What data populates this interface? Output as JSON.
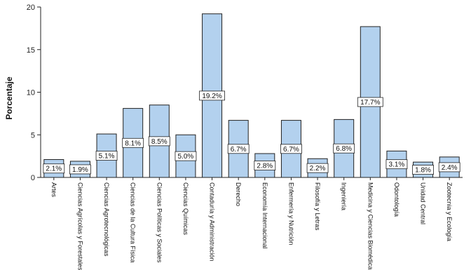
{
  "chart_data": {
    "type": "bar",
    "title": "",
    "xlabel": "",
    "ylabel": "Porcentaje",
    "ylim": [
      0,
      20
    ],
    "yticks": [
      0,
      5,
      10,
      15,
      20
    ],
    "grid": false,
    "categories": [
      "Artes",
      "Ciencias Agrícolas y Forestales",
      "Ciencias Agrotecnológicas",
      "Ciencias de la Cultura Física",
      "Ciencias Políticas y Sociales",
      "Ciencias Químicas",
      "Contaduría y Administración",
      "Derecho",
      "Economía Internacional",
      "Enfermería y Nutrición",
      "Filosofía y Letras",
      "Ingeniería",
      "Medicina y Ciencias Biomédicas",
      "Odontología",
      "Unidad Central",
      "Zootecnia y Ecología"
    ],
    "values": [
      2.1,
      1.9,
      5.1,
      8.1,
      8.5,
      5.0,
      19.2,
      6.7,
      2.8,
      6.7,
      2.2,
      6.8,
      17.7,
      3.1,
      1.8,
      2.4
    ],
    "data_labels": [
      "2.1%",
      "1.9%",
      "5.1%",
      "8.1%",
      "8.5%",
      "5.0%",
      "19.2%",
      "6.7%",
      "2.8%",
      "6.7%",
      "2.2%",
      "6.8%",
      "17.7%",
      "3.1%",
      "1.8%",
      "2.4%"
    ],
    "colors": {
      "bar_fill": "#b3d1ee",
      "bar_stroke": "#222222",
      "label_box": "#ffffff"
    }
  }
}
